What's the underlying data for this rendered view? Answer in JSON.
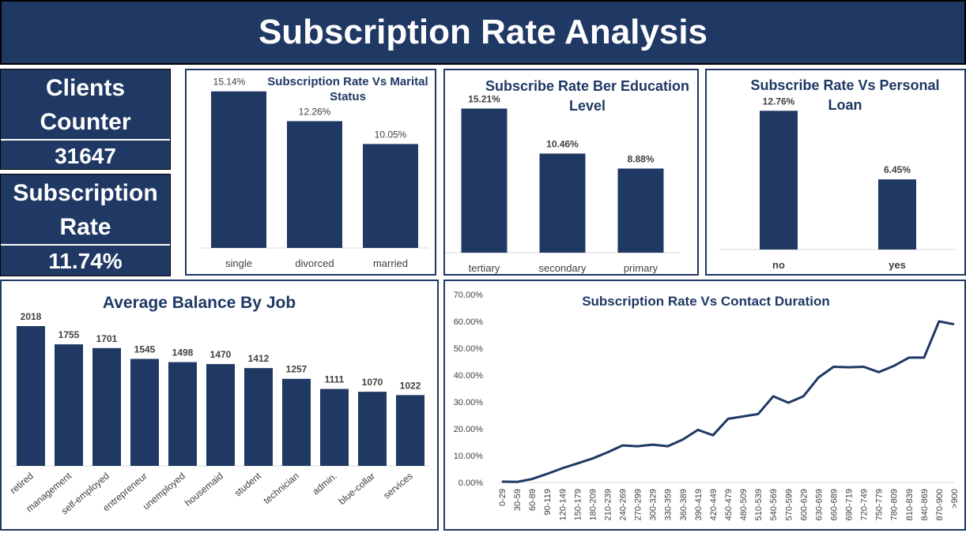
{
  "header": {
    "title": "Subscription Rate Analysis"
  },
  "kpis": {
    "clients_label_1": "Clients",
    "clients_label_2": "Counter",
    "clients_value": "31647",
    "rate_label_1": "Subscription",
    "rate_label_2": "Rate",
    "rate_value": "11.74%"
  },
  "colors": {
    "bar": "#1f3864",
    "line": "#1f3864",
    "axis": "#d9d9d9",
    "text": "#1f3864"
  },
  "chart_data": [
    {
      "id": "marital",
      "type": "bar",
      "title": "Subscription Rate Vs Marital Status",
      "categories": [
        "single",
        "divorced",
        "married"
      ],
      "values": [
        15.14,
        12.26,
        10.05
      ],
      "labels": [
        "15.14%",
        "12.26%",
        "10.05%"
      ],
      "ylim": [
        0,
        15.5
      ]
    },
    {
      "id": "education",
      "type": "bar",
      "title": "Subscribe Rate Ber Education Level",
      "categories": [
        "tertiary",
        "secondary",
        "primary"
      ],
      "values": [
        15.21,
        10.46,
        8.88
      ],
      "labels": [
        "15.21%",
        "10.46%",
        "8.88%"
      ],
      "ylim": [
        0,
        15.5
      ]
    },
    {
      "id": "loan",
      "type": "bar",
      "title": "Subscribe Rate Vs Personal Loan",
      "categories": [
        "no",
        "yes"
      ],
      "values": [
        12.76,
        6.45
      ],
      "labels": [
        "12.76%",
        "6.45%"
      ],
      "ylim": [
        0,
        13
      ]
    },
    {
      "id": "job",
      "type": "bar",
      "title": "Average  Balance By Job",
      "categories": [
        "retired",
        "management",
        "self-employed",
        "entrepreneur",
        "unemployed",
        "housemaid",
        "student",
        "technician",
        "admin.",
        "blue-collar",
        "services"
      ],
      "values": [
        2018,
        1755,
        1701,
        1545,
        1498,
        1470,
        1412,
        1257,
        1111,
        1070,
        1022
      ],
      "ylim": [
        0,
        2018
      ]
    },
    {
      "id": "duration",
      "type": "line",
      "title": "Subscription Rate Vs Contact Duration",
      "categories": [
        "0-29",
        "30-59",
        "60-89",
        "90-119",
        "120-149",
        "150-179",
        "180-209",
        "210-239",
        "240-269",
        "270-299",
        "300-329",
        "330-359",
        "360-389",
        "390-419",
        "420-449",
        "450-479",
        "480-509",
        "510-539",
        "540-569",
        "570-599",
        "600-629",
        "630-659",
        "660-689",
        "690-719",
        "720-749",
        "750-779",
        "780-809",
        "810-839",
        "840-869",
        "870-900",
        ">900"
      ],
      "values": [
        0.3,
        0.2,
        1.3,
        3.2,
        5.3,
        7.1,
        8.9,
        11.2,
        13.8,
        13.5,
        14.1,
        13.5,
        16.0,
        19.6,
        17.6,
        23.7,
        24.6,
        25.5,
        32.1,
        29.7,
        32.1,
        39.1,
        43.1,
        42.9,
        43.1,
        41.1,
        43.4,
        46.5,
        46.5,
        60.0,
        58.9
      ],
      "yticks": [
        "0.00%",
        "10.00%",
        "20.00%",
        "30.00%",
        "40.00%",
        "50.00%",
        "60.00%",
        "70.00%"
      ],
      "ylim": [
        0,
        70
      ]
    }
  ]
}
